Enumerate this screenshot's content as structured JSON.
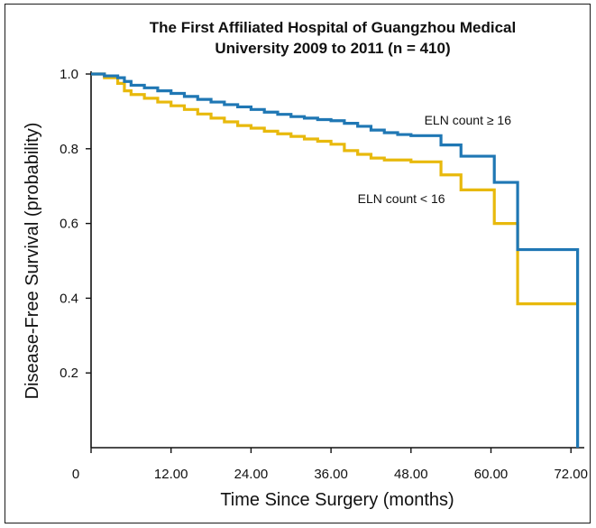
{
  "chart_data": {
    "type": "line",
    "subtype": "kaplan-meier step",
    "title_lines": [
      "The First Affiliated Hospital of Guangzhou Medical",
      "University 2009 to 2011 (n =  410)"
    ],
    "xlabel": "Time Since Surgery (months)",
    "ylabel": "Disease-Free Survival (probability)",
    "xlim": [
      0,
      74
    ],
    "ylim": [
      0,
      1.0
    ],
    "x_ticks": [
      0,
      12,
      24,
      36,
      48,
      60,
      72
    ],
    "x_tick_labels": [
      "0",
      "12.00",
      "24.00",
      "36.00",
      "48.00",
      "60.00",
      "72.00"
    ],
    "y_ticks": [
      0.2,
      0.4,
      0.6,
      0.8,
      1.0
    ],
    "y_tick_labels": [
      "0.2",
      "0.4",
      "0.6",
      "0.8",
      "1.0"
    ],
    "grid": false,
    "series": [
      {
        "name": "ELN count ≥ 16",
        "color": "#1f77b4",
        "points": [
          [
            0,
            1.0
          ],
          [
            2,
            0.995
          ],
          [
            4,
            0.99
          ],
          [
            5,
            0.98
          ],
          [
            6,
            0.97
          ],
          [
            8,
            0.963
          ],
          [
            10,
            0.955
          ],
          [
            12,
            0.948
          ],
          [
            14,
            0.94
          ],
          [
            16,
            0.932
          ],
          [
            18,
            0.925
          ],
          [
            20,
            0.918
          ],
          [
            22,
            0.912
          ],
          [
            24,
            0.905
          ],
          [
            26,
            0.898
          ],
          [
            28,
            0.892
          ],
          [
            30,
            0.886
          ],
          [
            32,
            0.882
          ],
          [
            34,
            0.878
          ],
          [
            36,
            0.875
          ],
          [
            38,
            0.868
          ],
          [
            40,
            0.86
          ],
          [
            42,
            0.85
          ],
          [
            44,
            0.843
          ],
          [
            46,
            0.838
          ],
          [
            48,
            0.835
          ],
          [
            52.5,
            0.81
          ],
          [
            55.5,
            0.78
          ],
          [
            60.5,
            0.71
          ],
          [
            64,
            0.53
          ],
          [
            73,
            0.0
          ]
        ]
      },
      {
        "name": "ELN count < 16",
        "color": "#e8b90c",
        "points": [
          [
            0,
            1.0
          ],
          [
            2,
            0.99
          ],
          [
            4,
            0.975
          ],
          [
            5,
            0.955
          ],
          [
            6,
            0.945
          ],
          [
            8,
            0.935
          ],
          [
            10,
            0.925
          ],
          [
            12,
            0.915
          ],
          [
            14,
            0.905
          ],
          [
            16,
            0.893
          ],
          [
            18,
            0.882
          ],
          [
            20,
            0.872
          ],
          [
            22,
            0.862
          ],
          [
            24,
            0.855
          ],
          [
            26,
            0.847
          ],
          [
            28,
            0.84
          ],
          [
            30,
            0.833
          ],
          [
            32,
            0.826
          ],
          [
            34,
            0.82
          ],
          [
            36,
            0.812
          ],
          [
            38,
            0.795
          ],
          [
            40,
            0.785
          ],
          [
            42,
            0.775
          ],
          [
            44,
            0.77
          ],
          [
            48,
            0.765
          ],
          [
            52.5,
            0.73
          ],
          [
            55.5,
            0.69
          ],
          [
            60.5,
            0.6
          ],
          [
            64,
            0.385
          ],
          [
            73,
            0.385
          ]
        ]
      }
    ],
    "annotations": [
      {
        "text": "ELN count ≥ 16",
        "x": 50,
        "y": 0.865
      },
      {
        "text": "ELN count < 16",
        "x": 40,
        "y": 0.655
      }
    ]
  }
}
